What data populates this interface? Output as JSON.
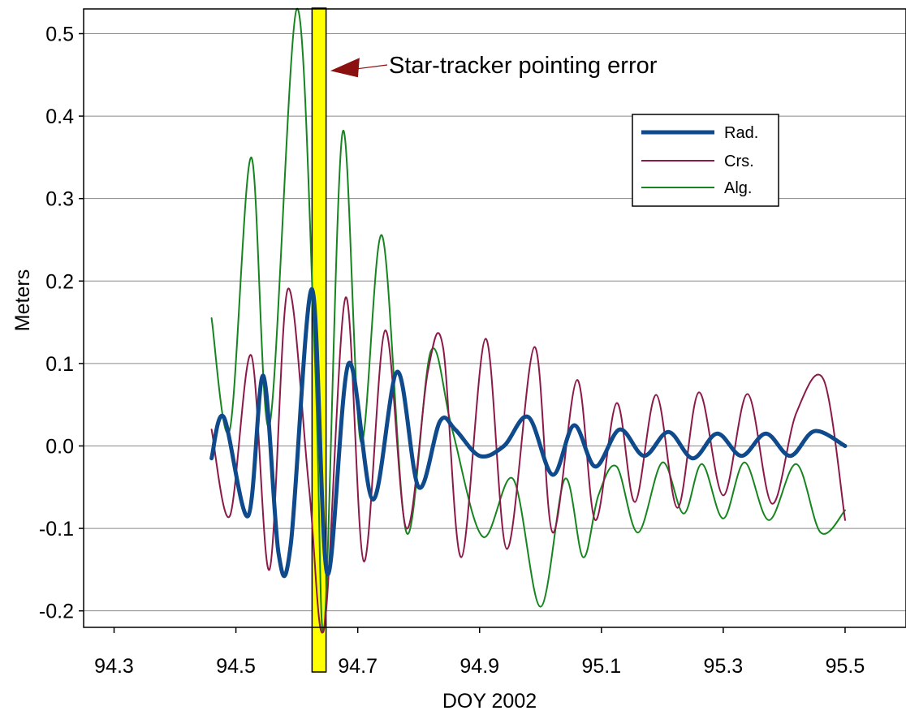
{
  "chart_data": {
    "type": "line",
    "title": "",
    "xlabel": "DOY 2002",
    "ylabel": "Meters",
    "xlim": [
      94.25,
      95.6
    ],
    "ylim": [
      -0.22,
      0.53
    ],
    "xticks": [
      94.3,
      94.5,
      94.7,
      94.9,
      95.1,
      95.3,
      95.5
    ],
    "xtick_labels": [
      "94.3",
      "94.5",
      "94.7",
      "94.9",
      "95.1",
      "95.3",
      "95.5"
    ],
    "yticks": [
      -0.2,
      -0.1,
      0.0,
      0.1,
      0.2,
      0.3,
      0.4,
      0.5
    ],
    "ytick_labels": [
      "-0.2",
      "-0.1",
      "0.0",
      "0.1",
      "0.2",
      "0.3",
      "0.4",
      "0.5"
    ],
    "grid": "horizontal",
    "legend_position": "upper-right",
    "annotation": {
      "text": "Star-tracker pointing error",
      "highlight_x": [
        94.625,
        94.648
      ],
      "highlight_color": "#ffff00",
      "arrow_color": "#8b1010",
      "arrow_target": [
        94.655,
        0.455
      ]
    },
    "series": [
      {
        "name": "Rad.",
        "color": "#0e4a8c",
        "line_width": 5,
        "x": [
          94.46,
          94.48,
          94.52,
          94.545,
          94.57,
          94.59,
          94.625,
          94.65,
          94.685,
          94.725,
          94.765,
          94.8,
          94.835,
          94.86,
          94.9,
          94.94,
          94.98,
          95.02,
          95.055,
          95.09,
          95.13,
          95.17,
          95.21,
          95.25,
          95.29,
          95.33,
          95.37,
          95.41,
          95.45,
          95.5
        ],
        "y": [
          -0.015,
          0.035,
          -0.085,
          0.085,
          -0.13,
          -0.12,
          0.19,
          -0.155,
          0.1,
          -0.065,
          0.09,
          -0.05,
          0.03,
          0.02,
          -0.012,
          0.0,
          0.035,
          -0.035,
          0.025,
          -0.025,
          0.02,
          -0.012,
          0.017,
          -0.015,
          0.015,
          -0.012,
          0.015,
          -0.012,
          0.018,
          0.0
        ]
      },
      {
        "name": "Crs.",
        "color": "#8b1a4a",
        "line_width": 2,
        "x": [
          94.46,
          94.49,
          94.525,
          94.555,
          94.585,
          94.62,
          94.645,
          94.68,
          94.71,
          94.745,
          94.78,
          94.815,
          94.84,
          94.87,
          94.91,
          94.945,
          94.99,
          95.02,
          95.06,
          95.09,
          95.125,
          95.155,
          95.19,
          95.225,
          95.26,
          95.3,
          95.34,
          95.38,
          95.42,
          95.465,
          95.5
        ],
        "y": [
          0.02,
          -0.085,
          0.11,
          -0.15,
          0.19,
          -0.05,
          -0.22,
          0.18,
          -0.14,
          0.14,
          -0.1,
          0.09,
          0.12,
          -0.135,
          0.13,
          -0.125,
          0.12,
          -0.105,
          0.08,
          -0.09,
          0.052,
          -0.068,
          0.062,
          -0.075,
          0.065,
          -0.06,
          0.063,
          -0.07,
          0.04,
          0.08,
          -0.09
        ]
      },
      {
        "name": "Alg.",
        "color": "#17851f",
        "line_width": 2,
        "x": [
          94.46,
          94.49,
          94.525,
          94.555,
          94.6,
          94.63,
          94.645,
          94.675,
          94.705,
          94.74,
          94.78,
          94.82,
          94.855,
          94.905,
          94.955,
          95.0,
          95.04,
          95.07,
          95.095,
          95.125,
          95.16,
          95.2,
          95.235,
          95.265,
          95.3,
          95.335,
          95.375,
          95.42,
          95.46,
          95.5
        ],
        "y": [
          0.155,
          0.02,
          0.35,
          0.025,
          0.53,
          0.1,
          -0.22,
          0.38,
          0.005,
          0.255,
          -0.105,
          0.115,
          0.02,
          -0.11,
          -0.04,
          -0.195,
          -0.04,
          -0.135,
          -0.06,
          -0.025,
          -0.105,
          -0.02,
          -0.082,
          -0.022,
          -0.088,
          -0.02,
          -0.09,
          -0.022,
          -0.105,
          -0.078
        ]
      }
    ]
  }
}
